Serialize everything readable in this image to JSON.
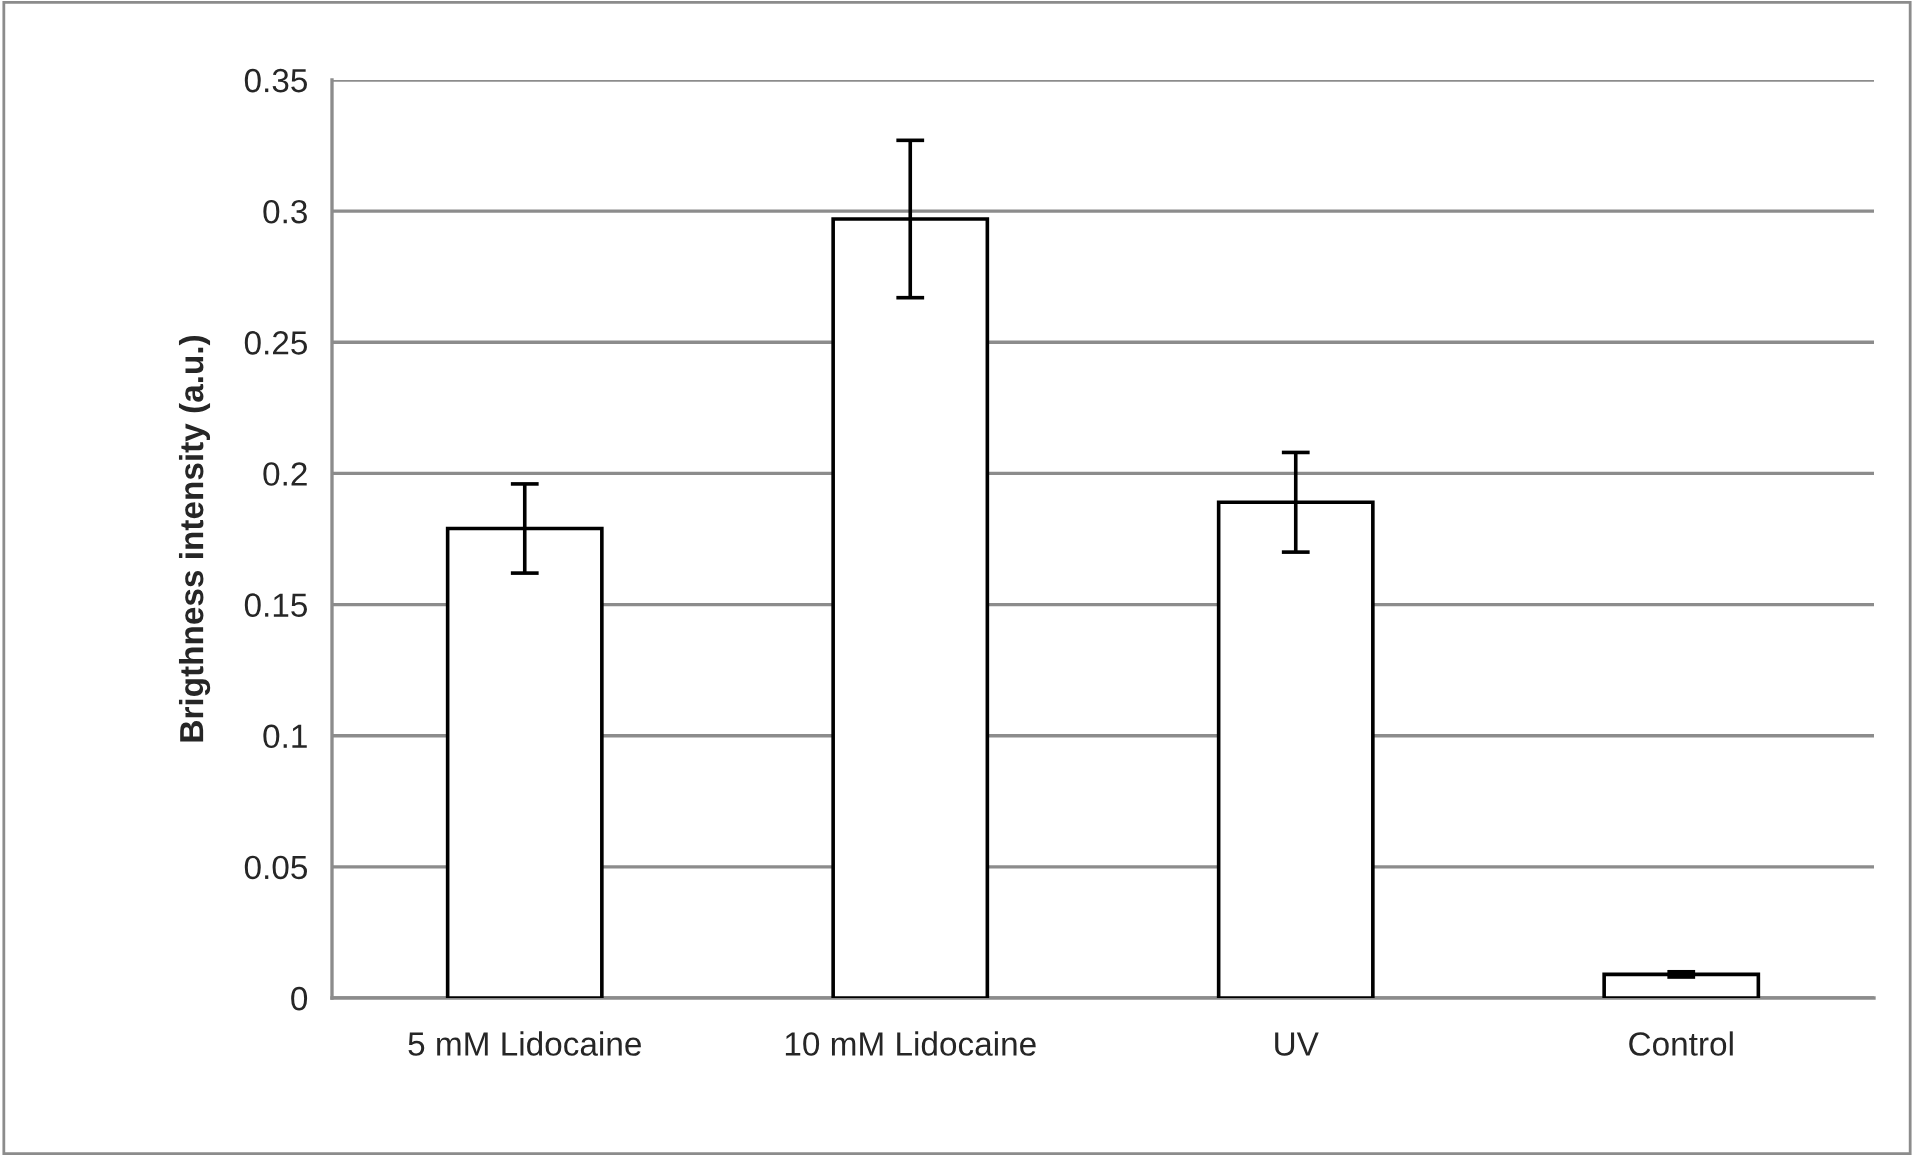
{
  "chart_data": {
    "type": "bar",
    "ylabel": "Brigthness intensity (a.u.)",
    "categories": [
      "5 mM Lidocaine",
      "10 mM Lidocaine",
      "UV",
      "Control"
    ],
    "values": [
      0.179,
      0.297,
      0.189,
      0.009
    ],
    "errors": [
      0.017,
      0.03,
      0.019,
      0.001
    ],
    "color": "#ffffff",
    "ylim": [
      0,
      0.35
    ],
    "yticks": [
      {
        "value": 0,
        "label": "0"
      },
      0.05,
      0.1,
      0.15,
      0.2,
      0.25,
      0.3,
      0.35
    ],
    "grid": "y"
  }
}
